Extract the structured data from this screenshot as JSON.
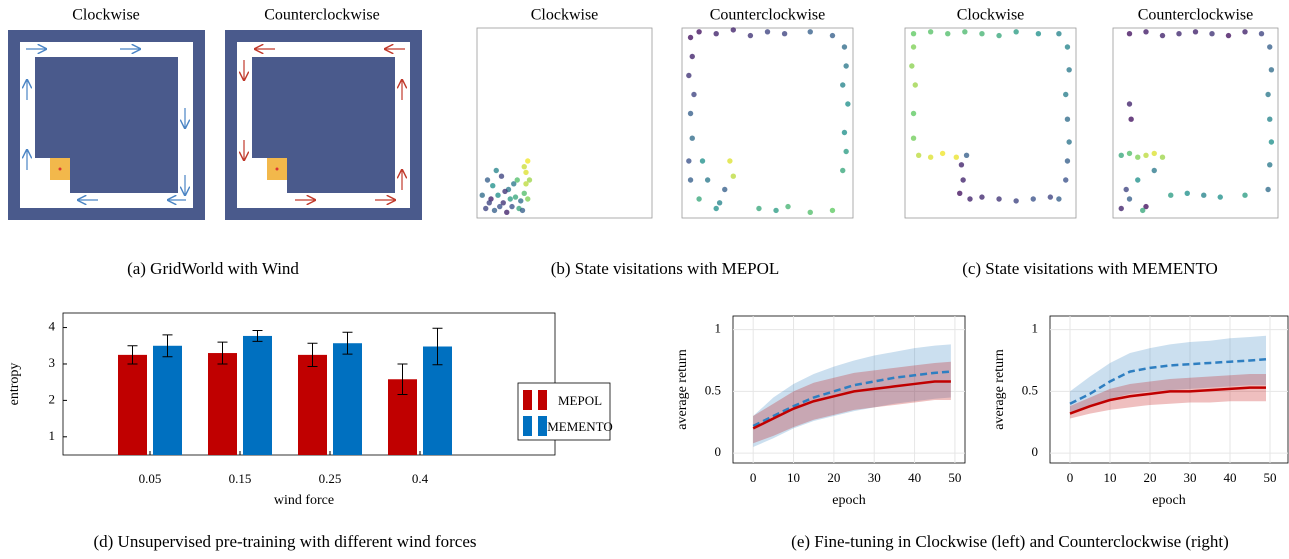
{
  "gridworld": {
    "titles": [
      "Clockwise",
      "Counterclockwise"
    ]
  },
  "captions": [
    "(a) GridWorld with Wind",
    "(b) State visitations with MEPOL",
    "(c) State visitations with MEMENTO",
    "(d) Unsupervised pre-training with different wind forces",
    "(e) Fine-tuning in Clockwise (left) and Counterclockwise (right)"
  ],
  "chart_data": [
    {
      "type": "scatter",
      "title": "Clockwise",
      "colormap": "viridis",
      "x": [
        0.05,
        0.08,
        0.1,
        0.12,
        0.15,
        0.18,
        0.2,
        0.22,
        0.25,
        0.27,
        0.28,
        0.28,
        0.29,
        0.27,
        0.3,
        0.06,
        0.09,
        0.14,
        0.17,
        0.21,
        0.24,
        0.03,
        0.11,
        0.16,
        0.19,
        0.23,
        0.26,
        0.07,
        0.13,
        0.29
      ],
      "y": [
        0.05,
        0.1,
        0.04,
        0.12,
        0.08,
        0.15,
        0.06,
        0.11,
        0.09,
        0.13,
        0.18,
        0.24,
        0.3,
        0.27,
        0.2,
        0.2,
        0.17,
        0.22,
        0.03,
        0.18,
        0.05,
        0.12,
        0.25,
        0.14,
        0.1,
        0.2,
        0.04,
        0.08,
        0.06,
        0.1
      ],
      "c": [
        0.2,
        0.1,
        0.3,
        0.5,
        0.15,
        0.4,
        0.25,
        0.6,
        0.35,
        0.7,
        0.9,
        0.95,
        0.98,
        0.92,
        0.85,
        0.3,
        0.5,
        0.2,
        0.1,
        0.4,
        0.6,
        0.35,
        0.45,
        0.15,
        0.55,
        0.7,
        0.3,
        0.2,
        0.25,
        0.8
      ]
    },
    {
      "type": "scatter",
      "title": "Counterclockwise",
      "colormap": "viridis",
      "x": [
        0.05,
        0.04,
        0.06,
        0.05,
        0.07,
        0.04,
        0.06,
        0.05,
        0.1,
        0.2,
        0.3,
        0.4,
        0.5,
        0.6,
        0.75,
        0.88,
        0.95,
        0.96,
        0.94,
        0.97,
        0.95,
        0.96,
        0.94,
        0.45,
        0.55,
        0.62,
        0.75,
        0.88,
        0.1,
        0.15,
        0.2,
        0.25,
        0.28,
        0.3,
        0.12,
        0.22
      ],
      "y": [
        0.2,
        0.3,
        0.42,
        0.55,
        0.65,
        0.75,
        0.85,
        0.95,
        0.98,
        0.97,
        0.99,
        0.96,
        0.98,
        0.97,
        0.98,
        0.96,
        0.9,
        0.8,
        0.7,
        0.6,
        0.45,
        0.35,
        0.25,
        0.05,
        0.04,
        0.06,
        0.03,
        0.04,
        0.1,
        0.2,
        0.05,
        0.15,
        0.3,
        0.22,
        0.3,
        0.08
      ],
      "c": [
        0.3,
        0.25,
        0.35,
        0.3,
        0.2,
        0.15,
        0.1,
        0.05,
        0.05,
        0.1,
        0.1,
        0.15,
        0.2,
        0.2,
        0.3,
        0.3,
        0.35,
        0.4,
        0.45,
        0.5,
        0.5,
        0.55,
        0.6,
        0.6,
        0.55,
        0.65,
        0.7,
        0.75,
        0.6,
        0.4,
        0.5,
        0.3,
        0.95,
        0.9,
        0.5,
        0.45
      ]
    },
    {
      "type": "scatter",
      "title": "Clockwise",
      "colormap": "viridis",
      "x": [
        0.05,
        0.15,
        0.25,
        0.35,
        0.45,
        0.55,
        0.65,
        0.78,
        0.9,
        0.05,
        0.04,
        0.06,
        0.05,
        0.05,
        0.08,
        0.15,
        0.22,
        0.3,
        0.36,
        0.33,
        0.34,
        0.32,
        0.38,
        0.45,
        0.55,
        0.65,
        0.75,
        0.85,
        0.9,
        0.95,
        0.96,
        0.94,
        0.95,
        0.96,
        0.95,
        0.94
      ],
      "y": [
        0.97,
        0.98,
        0.97,
        0.98,
        0.97,
        0.96,
        0.98,
        0.97,
        0.97,
        0.9,
        0.8,
        0.7,
        0.55,
        0.42,
        0.33,
        0.32,
        0.34,
        0.32,
        0.33,
        0.28,
        0.2,
        0.13,
        0.1,
        0.11,
        0.1,
        0.09,
        0.1,
        0.11,
        0.1,
        0.9,
        0.78,
        0.65,
        0.52,
        0.4,
        0.3,
        0.2
      ],
      "c": [
        0.75,
        0.72,
        0.7,
        0.68,
        0.65,
        0.6,
        0.55,
        0.5,
        0.45,
        0.8,
        0.82,
        0.85,
        0.75,
        0.78,
        0.9,
        0.95,
        0.98,
        0.97,
        0.3,
        0.1,
        0.1,
        0.05,
        0.1,
        0.12,
        0.15,
        0.2,
        0.25,
        0.2,
        0.3,
        0.45,
        0.4,
        0.42,
        0.35,
        0.38,
        0.3,
        0.25
      ]
    },
    {
      "type": "scatter",
      "title": "Counterclockwise",
      "colormap": "viridis",
      "x": [
        0.1,
        0.2,
        0.3,
        0.4,
        0.5,
        0.6,
        0.7,
        0.8,
        0.9,
        0.95,
        0.96,
        0.94,
        0.95,
        0.96,
        0.95,
        0.94,
        0.05,
        0.1,
        0.15,
        0.2,
        0.25,
        0.3,
        0.35,
        0.45,
        0.55,
        0.65,
        0.8,
        0.05,
        0.1,
        0.15,
        0.2,
        0.25,
        0.08,
        0.18,
        0.1,
        0.11
      ],
      "y": [
        0.97,
        0.98,
        0.96,
        0.97,
        0.98,
        0.97,
        0.96,
        0.98,
        0.97,
        0.9,
        0.78,
        0.65,
        0.52,
        0.4,
        0.28,
        0.15,
        0.33,
        0.34,
        0.32,
        0.33,
        0.34,
        0.32,
        0.12,
        0.13,
        0.12,
        0.11,
        0.12,
        0.05,
        0.1,
        0.2,
        0.06,
        0.25,
        0.15,
        0.04,
        0.6,
        0.52
      ],
      "c": [
        0.05,
        0.08,
        0.1,
        0.12,
        0.1,
        0.15,
        0.05,
        0.1,
        0.2,
        0.3,
        0.35,
        0.4,
        0.45,
        0.5,
        0.4,
        0.35,
        0.6,
        0.7,
        0.8,
        0.9,
        0.95,
        0.85,
        0.55,
        0.5,
        0.45,
        0.5,
        0.55,
        0.1,
        0.3,
        0.5,
        0.05,
        0.4,
        0.2,
        0.6,
        0.1,
        0.05
      ]
    },
    {
      "type": "bar",
      "categories": [
        "0.05",
        "0.15",
        "0.25",
        "0.4"
      ],
      "xlabel": "wind force",
      "ylabel": "entropy",
      "ylim": [
        0.5,
        4.4
      ],
      "yticks": [
        1,
        2,
        3,
        4
      ],
      "series": [
        {
          "name": "MEPOL",
          "color": "#c00000",
          "values": [
            3.25,
            3.3,
            3.25,
            2.58
          ],
          "errors": [
            0.25,
            0.3,
            0.32,
            0.42
          ]
        },
        {
          "name": "MEMENTO",
          "color": "#0070c0",
          "values": [
            3.5,
            3.77,
            3.57,
            3.48
          ],
          "errors": [
            0.3,
            0.15,
            0.3,
            0.5
          ]
        }
      ]
    },
    {
      "type": "line",
      "xlabel": "epoch",
      "ylabel": "average return",
      "grid": true,
      "x": [
        0,
        5,
        10,
        15,
        20,
        25,
        30,
        35,
        40,
        45,
        49
      ],
      "xlim": [
        -5,
        52.5
      ],
      "ylim": [
        -0.08,
        1.11
      ],
      "xticks": [
        0,
        10,
        20,
        30,
        40,
        50
      ],
      "yticks": [
        0,
        0.5,
        1
      ],
      "series": [
        {
          "color": "#2f7fc1",
          "dash": true,
          "values": [
            0.22,
            0.3,
            0.38,
            0.45,
            0.5,
            0.55,
            0.58,
            0.61,
            0.63,
            0.65,
            0.66
          ],
          "lower": [
            0.05,
            0.12,
            0.2,
            0.26,
            0.3,
            0.34,
            0.37,
            0.4,
            0.42,
            0.44,
            0.45
          ],
          "upper": [
            0.3,
            0.45,
            0.56,
            0.64,
            0.7,
            0.75,
            0.79,
            0.82,
            0.85,
            0.87,
            0.88
          ]
        },
        {
          "color": "#c00000",
          "dash": false,
          "values": [
            0.2,
            0.28,
            0.36,
            0.42,
            0.46,
            0.5,
            0.52,
            0.54,
            0.56,
            0.58,
            0.58
          ],
          "lower": [
            0.08,
            0.14,
            0.21,
            0.27,
            0.31,
            0.35,
            0.37,
            0.39,
            0.41,
            0.43,
            0.43
          ],
          "upper": [
            0.3,
            0.4,
            0.5,
            0.57,
            0.61,
            0.65,
            0.67,
            0.69,
            0.71,
            0.73,
            0.74
          ]
        }
      ]
    },
    {
      "type": "line",
      "xlabel": "epoch",
      "ylabel": "average return",
      "grid": true,
      "x": [
        0,
        5,
        10,
        15,
        20,
        25,
        30,
        35,
        40,
        45,
        49
      ],
      "xlim": [
        -5,
        54.5
      ],
      "ylim": [
        -0.08,
        1.11
      ],
      "xticks": [
        0,
        10,
        20,
        30,
        40,
        50
      ],
      "yticks": [
        0,
        0.5,
        1
      ],
      "series": [
        {
          "color": "#2f7fc1",
          "dash": true,
          "values": [
            0.4,
            0.48,
            0.58,
            0.66,
            0.69,
            0.71,
            0.72,
            0.73,
            0.74,
            0.75,
            0.76
          ],
          "lower": [
            0.33,
            0.38,
            0.44,
            0.48,
            0.5,
            0.51,
            0.52,
            0.53,
            0.54,
            0.55,
            0.55
          ],
          "upper": [
            0.5,
            0.62,
            0.73,
            0.81,
            0.85,
            0.88,
            0.9,
            0.91,
            0.93,
            0.94,
            0.95
          ]
        },
        {
          "color": "#c00000",
          "dash": false,
          "values": [
            0.32,
            0.38,
            0.43,
            0.46,
            0.48,
            0.5,
            0.5,
            0.51,
            0.52,
            0.53,
            0.53
          ],
          "lower": [
            0.28,
            0.32,
            0.35,
            0.37,
            0.39,
            0.4,
            0.41,
            0.41,
            0.42,
            0.42,
            0.42
          ],
          "upper": [
            0.38,
            0.45,
            0.52,
            0.56,
            0.58,
            0.6,
            0.61,
            0.62,
            0.63,
            0.64,
            0.64
          ]
        }
      ]
    }
  ]
}
